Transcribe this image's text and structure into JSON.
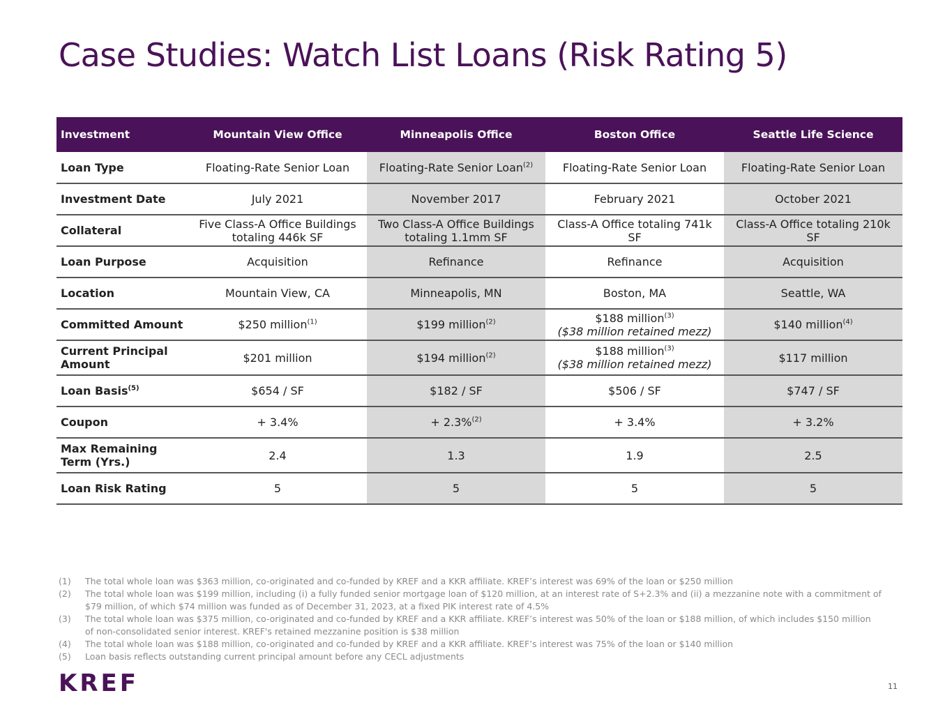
{
  "title": "Case Studies: Watch List Loans (Risk Rating 5)",
  "table": {
    "header": [
      "Investment",
      "Mountain View Office",
      "Minneapolis Office",
      "Boston Office",
      "Seattle Life Science"
    ],
    "rows": [
      {
        "label": "Loan Type",
        "cells": [
          {
            "text": "Floating-Rate Senior Loan"
          },
          {
            "text": "Floating-Rate Senior Loan",
            "sup": "(2)"
          },
          {
            "text": "Floating-Rate Senior Loan"
          },
          {
            "text": "Floating-Rate Senior Loan"
          }
        ]
      },
      {
        "label": "Investment Date",
        "cells": [
          {
            "text": "July 2021"
          },
          {
            "text": "November 2017"
          },
          {
            "text": "February 2021"
          },
          {
            "text": "October 2021"
          }
        ]
      },
      {
        "label": "Collateral",
        "cells": [
          {
            "text": "Five Class-A Office Buildings totaling 446k SF"
          },
          {
            "text": "Two Class-A Office Buildings totaling 1.1mm SF"
          },
          {
            "text": "Class-A Office totaling 741k SF"
          },
          {
            "text": "Class-A Office totaling 210k SF"
          }
        ]
      },
      {
        "label": "Loan Purpose",
        "cells": [
          {
            "text": "Acquisition"
          },
          {
            "text": "Refinance"
          },
          {
            "text": "Refinance"
          },
          {
            "text": "Acquisition"
          }
        ]
      },
      {
        "label": "Location",
        "cells": [
          {
            "text": "Mountain View, CA"
          },
          {
            "text": "Minneapolis, MN"
          },
          {
            "text": "Boston, MA"
          },
          {
            "text": "Seattle, WA"
          }
        ]
      },
      {
        "label": "Committed Amount",
        "cells": [
          {
            "text": "$250 million",
            "sup": "(1)"
          },
          {
            "text": "$199 million",
            "sup": "(2)"
          },
          {
            "text": "$188 million",
            "sup": "(3)",
            "note": "($38 million retained mezz)"
          },
          {
            "text": "$140 million",
            "sup": "(4)"
          }
        ]
      },
      {
        "label": "Current Principal Amount",
        "cells": [
          {
            "text": "$201 million"
          },
          {
            "text": "$194 million",
            "sup": "(2)"
          },
          {
            "text": "$188 million",
            "sup": "(3)",
            "note": "($38 million retained mezz)"
          },
          {
            "text": "$117 million"
          }
        ]
      },
      {
        "label": "Loan Basis",
        "label_sup": "(5)",
        "cells": [
          {
            "text": "$654 / SF"
          },
          {
            "text": "$182 / SF"
          },
          {
            "text": "$506 / SF"
          },
          {
            "text": "$747 / SF"
          }
        ]
      },
      {
        "label": "Coupon",
        "cells": [
          {
            "text": "+ 3.4%"
          },
          {
            "text": "+ 2.3%",
            "sup": "(2)"
          },
          {
            "text": "+ 3.4%"
          },
          {
            "text": "+ 3.2%"
          }
        ]
      },
      {
        "label": "Max Remaining Term (Yrs.)",
        "cells": [
          {
            "text": "2.4"
          },
          {
            "text": "1.3"
          },
          {
            "text": "1.9"
          },
          {
            "text": "2.5"
          }
        ]
      },
      {
        "label": "Loan Risk Rating",
        "cells": [
          {
            "text": "5"
          },
          {
            "text": "5"
          },
          {
            "text": "5"
          },
          {
            "text": "5"
          }
        ]
      }
    ]
  },
  "footnotes": [
    {
      "marker": "(1)",
      "text": "The total whole loan was $363 million, co-originated and co-funded by KREF and a KKR affiliate. KREF’s interest was 69% of the loan or $250 million"
    },
    {
      "marker": "(2)",
      "text": "The total whole loan was $199 million, including (i) a fully funded senior mortgage loan of $120 million, at an interest rate of S+2.3% and (ii) a mezzanine note with a commitment of $79 million, of which $74 million was funded as of December 31, 2023, at a fixed PIK interest rate of 4.5%"
    },
    {
      "marker": "(3)",
      "text": "The total whole loan was $375 million, co-originated and co-funded by KREF and a KKR affiliate. KREF’s interest was 50% of the loan or $188 million, of which includes $150 million of non-consolidated senior interest. KREF's retained mezzanine position is $38 million"
    },
    {
      "marker": "(4)",
      "text": "The total whole loan was $188 million, co-originated and co-funded by KREF and a KKR affiliate. KREF’s interest was 75% of the loan or $140 million"
    },
    {
      "marker": "(5)",
      "text": "Loan basis reflects outstanding current principal amount before any CECL adjustments"
    }
  ],
  "logo": "KREF",
  "page_number": "11"
}
